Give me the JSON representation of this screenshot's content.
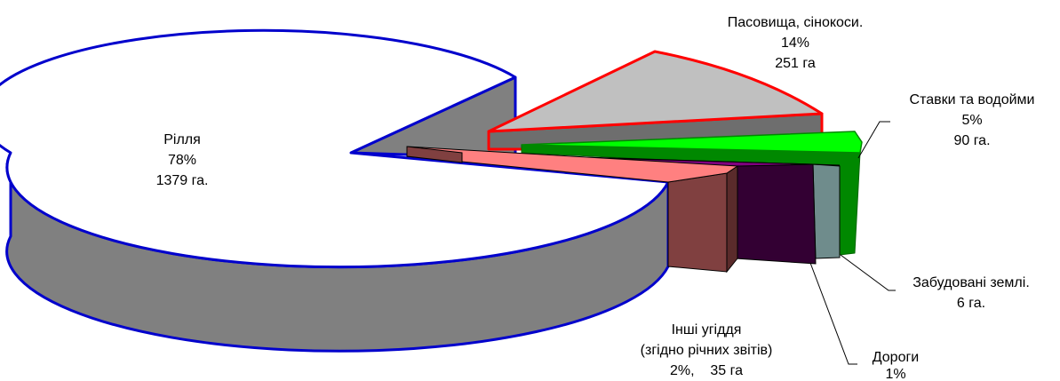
{
  "chart_data": {
    "type": "pie",
    "style": "3d-exploded",
    "slices": [
      {
        "label_lines": [
          "Рілля",
          "78%",
          "1379 га."
        ],
        "percent": 78,
        "area_ha": 1379,
        "color": "#ffffff",
        "side_color": "#808080",
        "border": "#0000cc"
      },
      {
        "label_lines": [
          "Пасовища, сінокоси.",
          "14%",
          "251 га"
        ],
        "percent": 14,
        "area_ha": 251,
        "color": "#c0c0c0",
        "side_color": "#6e6e6e",
        "border": "#ff0000"
      },
      {
        "label_lines": [
          "Ставки та водойми",
          "5%",
          "90 га."
        ],
        "percent": 5,
        "area_ha": 90,
        "color": "#00ff00",
        "side_color": "#008800",
        "border": "#008800"
      },
      {
        "label_lines": [
          "Забудовані землі.",
          "6 га."
        ],
        "percent": null,
        "area_ha": 6,
        "color": "#6f8c8c",
        "side_color": "#4d6666",
        "border": "#000000"
      },
      {
        "label_lines": [
          "Дороги",
          "1%"
        ],
        "percent": 1,
        "area_ha": null,
        "color": "#330033",
        "side_color": "#330033",
        "border": "#000000"
      },
      {
        "label_lines": [
          "Інші угіддя",
          "(згідно річних звітів)",
          "2%,    35 га"
        ],
        "percent": 2,
        "area_ha": 35,
        "color": "#ff8080",
        "side_color": "#804040",
        "border": "#000000"
      }
    ]
  }
}
